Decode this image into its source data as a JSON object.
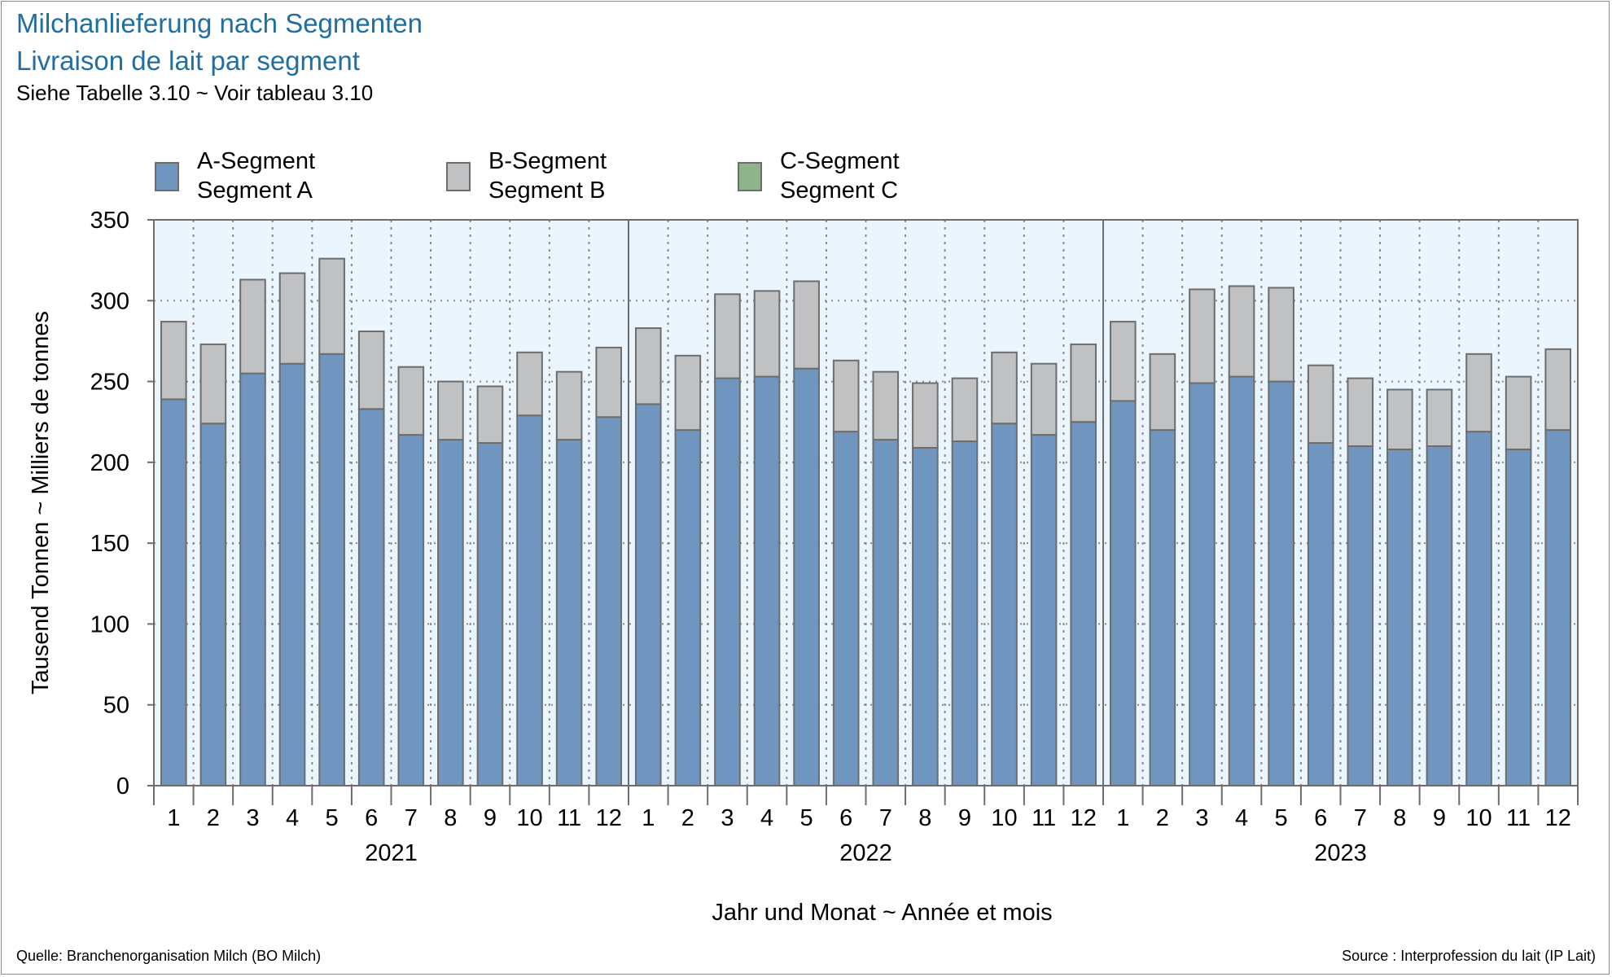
{
  "title": "Milchanlieferung nach Segmenten",
  "subtitle": "Livraison de lait par segment",
  "note": "Siehe Tabelle 3.10   ~   Voir tableau 3.10",
  "source_left": "Quelle: Branchenorganisation Milch (BO Milch)",
  "source_right": "Source : Interprofession du lait (IP Lait)",
  "colors": {
    "segment_a": "#7096bf",
    "segment_b": "#c0c1c3",
    "segment_c": "#8db48b",
    "plot_background": "#eaf5fd",
    "title": "#1f6fa0"
  },
  "legend": [
    {
      "line1": "A-Segment",
      "line2": "Segment A"
    },
    {
      "line1": "B-Segment",
      "line2": "Segment B"
    },
    {
      "line1": "C-Segment",
      "line2": "Segment C"
    }
  ],
  "chart_data": {
    "type": "bar",
    "stacked": true,
    "title": "Milchanlieferung nach Segmenten",
    "subtitle": "Livraison de lait par segment",
    "xlabel": "Jahr und Monat   ~   Année et mois",
    "ylabel": "Tausend Tonnen   ~   Milliers de tonnes",
    "ylim": [
      0,
      350
    ],
    "yticks": [
      0,
      50,
      100,
      150,
      200,
      250,
      300,
      350
    ],
    "grid": true,
    "legend_position": "top-left",
    "years": [
      "2021",
      "2022",
      "2023"
    ],
    "categories": [
      "1",
      "2",
      "3",
      "4",
      "5",
      "6",
      "7",
      "8",
      "9",
      "10",
      "11",
      "12",
      "1",
      "2",
      "3",
      "4",
      "5",
      "6",
      "7",
      "8",
      "9",
      "10",
      "11",
      "12",
      "1",
      "2",
      "3",
      "4",
      "5",
      "6",
      "7",
      "8",
      "9",
      "10",
      "11",
      "12"
    ],
    "series": [
      {
        "name": "A-Segment / Segment A",
        "values": [
          239,
          224,
          255,
          261,
          267,
          233,
          217,
          214,
          212,
          229,
          214,
          228,
          236,
          220,
          252,
          253,
          258,
          219,
          214,
          209,
          213,
          224,
          217,
          225,
          238,
          220,
          249,
          253,
          250,
          212,
          210,
          208,
          210,
          219,
          208,
          220
        ]
      },
      {
        "name": "B-Segment / Segment B",
        "values": [
          48,
          49,
          58,
          56,
          59,
          48,
          42,
          36,
          35,
          39,
          42,
          43,
          47,
          46,
          52,
          53,
          54,
          44,
          42,
          40,
          39,
          44,
          44,
          48,
          49,
          47,
          58,
          56,
          58,
          48,
          42,
          37,
          35,
          48,
          45,
          50
        ]
      },
      {
        "name": "C-Segment / Segment C",
        "values": [
          0,
          0,
          0,
          0,
          0,
          0,
          0,
          0,
          0,
          0,
          0,
          0,
          0,
          0,
          0,
          0,
          0,
          0,
          0,
          0,
          0,
          0,
          0,
          0,
          0,
          0,
          0,
          0,
          0,
          0,
          0,
          0,
          0,
          0,
          0,
          0
        ]
      }
    ]
  }
}
